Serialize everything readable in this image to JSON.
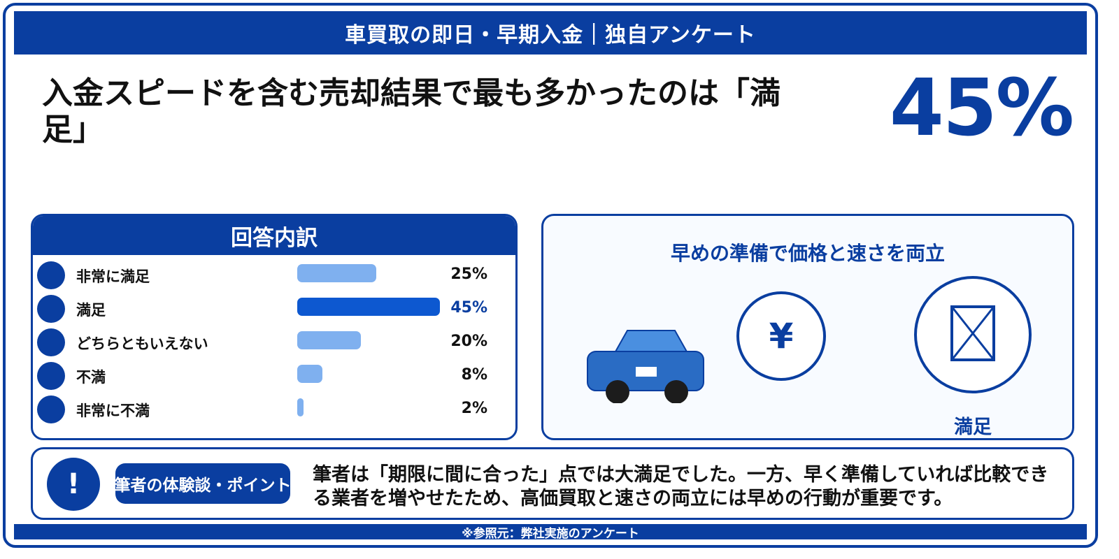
{
  "header": {
    "title": "車買取の即日・早期入金｜独自アンケート"
  },
  "headline": {
    "text": "入金スピードを含む売却結果で最も多かったのは「満足」"
  },
  "highlight": {
    "value": "45%"
  },
  "chart_data": {
    "type": "bar",
    "title": "回答内訳",
    "categories": [
      "非常に満足",
      "満足",
      "どちらともいえない",
      "不満",
      "非常に不満"
    ],
    "values": [
      25,
      45,
      20,
      8,
      2
    ],
    "value_labels": [
      "25%",
      "45%",
      "20%",
      "8%",
      "2%"
    ],
    "highlight_index": 1,
    "xlim": [
      0,
      45
    ],
    "colors": {
      "bar": "#7fb0ef",
      "highlight": "#0d58d0",
      "accent": "#0a3ea0"
    }
  },
  "right_panel": {
    "title": "早めの準備で価格と速さを両立",
    "yen_symbol": "¥",
    "satisfaction_label": "満足",
    "icons": [
      "car-icon",
      "yen-icon",
      "satisfaction-icon"
    ]
  },
  "tip": {
    "icon": "!",
    "tag": "筆者の体験談・ポイント",
    "text": "筆者は「期限に間に合った」点では大満足でした。一方、早く準備していれば比較できる業者を増やせたため、高価買取と速さの両立には早めの行動が重要です。"
  },
  "footer": {
    "text": "※参照元：弊社実施のアンケート"
  },
  "colors": {
    "brand": "#0a3ea0",
    "panel_bg": "#f8fbff"
  }
}
